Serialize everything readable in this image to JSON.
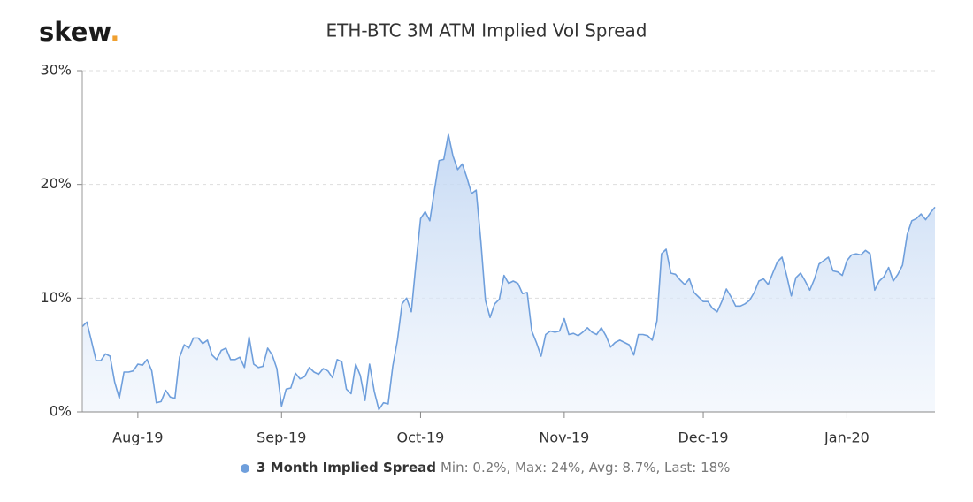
{
  "logo": {
    "text": "skew",
    "dot": "."
  },
  "chart_data": {
    "type": "area",
    "title": "ETH-BTC 3M ATM Implied Vol Spread",
    "series": [
      {
        "name": "3 Month Implied Spread",
        "color": "#6f9fdc",
        "values": [
          7.5,
          7.9,
          6.2,
          4.5,
          4.5,
          5.1,
          4.9,
          2.6,
          1.2,
          3.5,
          3.5,
          3.6,
          4.2,
          4.1,
          4.6,
          3.6,
          0.8,
          0.9,
          1.9,
          1.3,
          1.2,
          4.8,
          5.9,
          5.6,
          6.5,
          6.5,
          6.0,
          6.3,
          5.0,
          4.6,
          5.4,
          5.6,
          4.6,
          4.6,
          4.8,
          3.9,
          6.6,
          4.2,
          3.9,
          4.0,
          5.6,
          5.0,
          3.8,
          0.5,
          2.0,
          2.1,
          3.4,
          2.9,
          3.1,
          3.9,
          3.5,
          3.3,
          3.8,
          3.6,
          3.0,
          4.6,
          4.4,
          2.0,
          1.6,
          4.2,
          3.2,
          1.0,
          4.2,
          1.8,
          0.2,
          0.8,
          0.7,
          4.0,
          6.3,
          9.5,
          10.0,
          8.8,
          13.0,
          17.0,
          17.6,
          16.8,
          19.5,
          22.1,
          22.2,
          24.4,
          22.5,
          21.3,
          21.8,
          20.6,
          19.2,
          19.5,
          15.0,
          9.8,
          8.3,
          9.5,
          9.9,
          12.0,
          11.3,
          11.5,
          11.3,
          10.4,
          10.5,
          7.1,
          6.1,
          4.9,
          6.8,
          7.1,
          7.0,
          7.1,
          8.2,
          6.8,
          6.9,
          6.7,
          7.0,
          7.4,
          7.0,
          6.8,
          7.4,
          6.7,
          5.7,
          6.1,
          6.3,
          6.1,
          5.9,
          5.0,
          6.8,
          6.8,
          6.7,
          6.3,
          8.0,
          13.9,
          14.3,
          12.2,
          12.1,
          11.6,
          11.2,
          11.7,
          10.5,
          10.1,
          9.7,
          9.7,
          9.1,
          8.8,
          9.7,
          10.8,
          10.1,
          9.3,
          9.3,
          9.5,
          9.8,
          10.5,
          11.5,
          11.7,
          11.2,
          12.2,
          13.2,
          13.6,
          12.0,
          10.2,
          11.8,
          12.2,
          11.5,
          10.7,
          11.7,
          13.0,
          13.3,
          13.6,
          12.4,
          12.3,
          12.0,
          13.3,
          13.8,
          13.9,
          13.8,
          14.2,
          13.9,
          10.7,
          11.5,
          11.9,
          12.7,
          11.5,
          12.1,
          12.9,
          15.6,
          16.8,
          17.0,
          17.4,
          16.9,
          17.5,
          18.0
        ]
      }
    ],
    "legend_stats": "Min: 0.2%, Max: 24%, Avg: 8.7%, Last: 18%",
    "xlim": [
      0,
      184
    ],
    "xticks": [
      {
        "value": 12,
        "label": "Aug-19"
      },
      {
        "value": 43,
        "label": "Sep-19"
      },
      {
        "value": 73,
        "label": "Oct-19"
      },
      {
        "value": 104,
        "label": "Nov-19"
      },
      {
        "value": 134,
        "label": "Dec-19"
      },
      {
        "value": 165,
        "label": "Jan-20"
      }
    ],
    "ylim": [
      0,
      30
    ],
    "yticks": [
      {
        "value": 0,
        "label": "0%"
      },
      {
        "value": 10,
        "label": "10%"
      },
      {
        "value": 20,
        "label": "20%"
      },
      {
        "value": 30,
        "label": "30%"
      }
    ],
    "grid": true
  }
}
